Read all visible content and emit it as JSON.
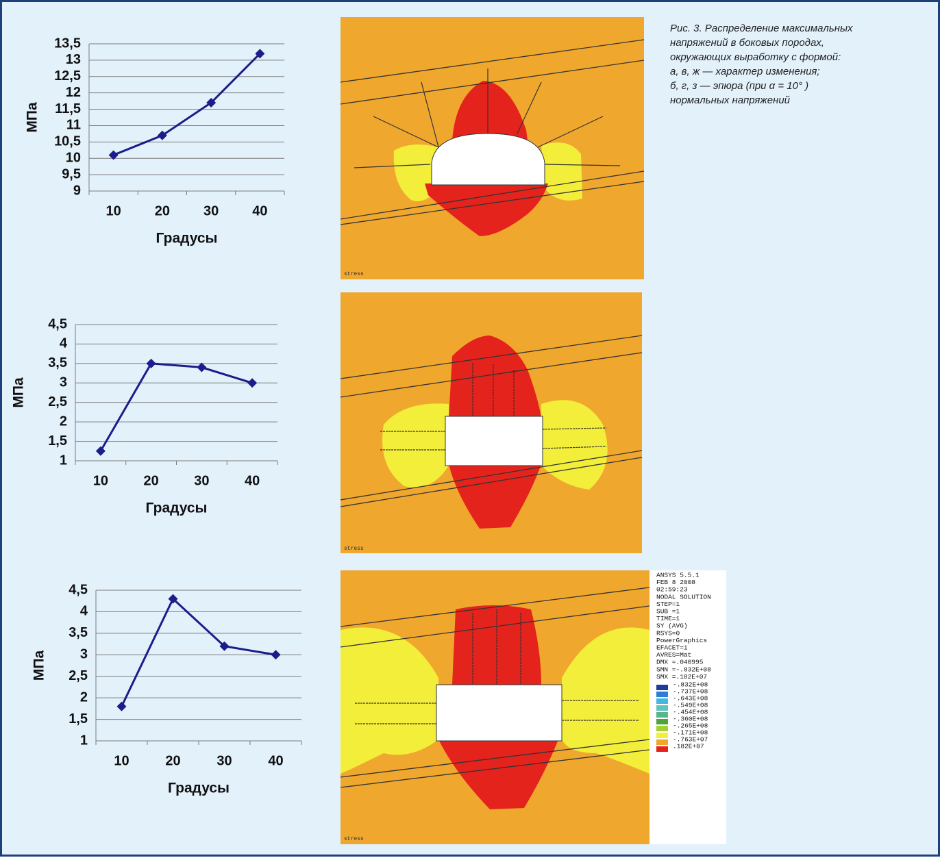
{
  "chart_data": [
    {
      "type": "line",
      "x_label": "Градусы",
      "y_label": "МПа",
      "color": "#1c1c8a",
      "grid": true,
      "categories": [
        "10",
        "20",
        "30",
        "40"
      ],
      "values": [
        10.1,
        10.7,
        11.7,
        13.2
      ],
      "ylim": [
        9,
        13.5
      ],
      "yticks": [
        9,
        {
          "value": 9.5,
          "label": "9,5"
        },
        10,
        {
          "value": 10.5,
          "label": "10,5"
        },
        11,
        {
          "value": 11.5,
          "label": "11,5"
        },
        12,
        {
          "value": 12.5,
          "label": "12,5"
        },
        13,
        {
          "value": 13.5,
          "label": "13,5"
        }
      ]
    },
    {
      "type": "line",
      "x_label": "Градусы",
      "y_label": "МПа",
      "color": "#1c1c8a",
      "grid": true,
      "categories": [
        "10",
        "20",
        "30",
        "40"
      ],
      "values": [
        1.25,
        3.5,
        3.4,
        3.0
      ],
      "ylim": [
        1,
        4.5
      ],
      "yticks": [
        1,
        {
          "value": 1.5,
          "label": "1,5"
        },
        2,
        {
          "value": 2.5,
          "label": "2,5"
        },
        3,
        {
          "value": 3.5,
          "label": "3,5"
        },
        4,
        {
          "value": 4.5,
          "label": "4,5"
        }
      ]
    },
    {
      "type": "line",
      "x_label": "Градусы",
      "y_label": "МПа",
      "color": "#1c1c8a",
      "grid": true,
      "categories": [
        "10",
        "20",
        "30",
        "40"
      ],
      "values": [
        1.8,
        4.3,
        3.2,
        3.0
      ],
      "ylim": [
        1,
        4.5
      ],
      "yticks": [
        1,
        {
          "value": 1.5,
          "label": "1,5"
        },
        2,
        {
          "value": 2.5,
          "label": "2,5"
        },
        3,
        {
          "value": 3.5,
          "label": "3,5"
        },
        4,
        {
          "value": 4.5,
          "label": "4,5"
        }
      ]
    }
  ],
  "caption": [
    "Рис. 3. Распределение максимальных",
    "напряжений в боковых породах,",
    "окружающих выработку с формой:",
    "а, в, ж — характер изменения;",
    "б, г, з — эпюра (при α = 10° )",
    "нормальных напряжений"
  ],
  "figures": [
    {
      "label": "stress"
    },
    {
      "label": "stress"
    },
    {
      "label": "stress"
    }
  ],
  "ansys_info": [
    "ANSYS 5.5.1",
    "FEB  8 2008",
    "02:59:23",
    "NODAL SOLUTION",
    "STEP=1",
    "SUB =1",
    "TIME=1",
    "SY       (AVG)",
    "RSYS=0",
    "PowerGraphics",
    "EFACET=1",
    "AVRES=Mat",
    "DMX =.040995",
    "SMN =-.832E+08",
    "SMX =.182E+07"
  ],
  "ansys_scale": [
    "-.832E+08",
    "-.737E+08",
    "-.643E+08",
    "-.549E+08",
    "-.454E+08",
    "-.360E+08",
    "-.265E+08",
    "-.171E+08",
    "-.763E+07",
    ".182E+07"
  ]
}
